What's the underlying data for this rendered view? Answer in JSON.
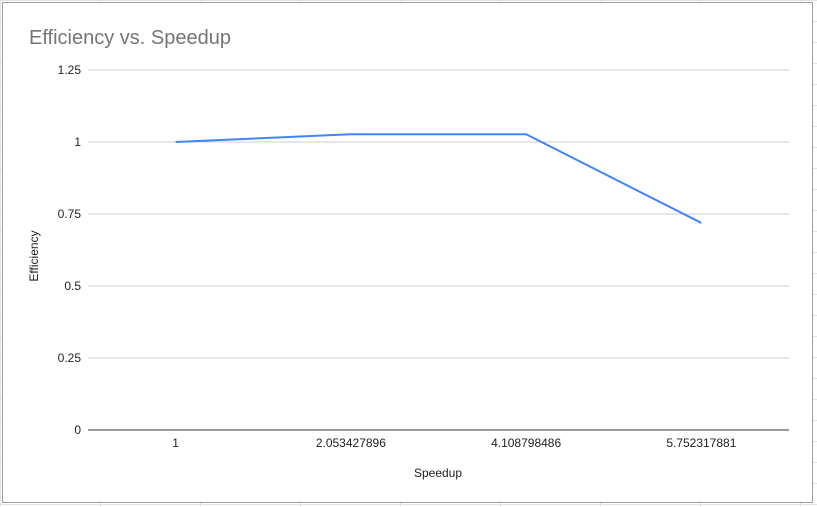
{
  "chart_data": {
    "type": "line",
    "title": "Efficiency vs. Speedup",
    "xlabel": "Speedup",
    "ylabel": "Efficiency",
    "categories": [
      "1",
      "2.053427896",
      "4.108798486",
      "5.752317881"
    ],
    "series": [
      {
        "values": [
          1.0,
          1.027,
          1.027,
          0.719
        ],
        "color": "#4285f4"
      }
    ],
    "ylim": [
      0,
      1.25
    ],
    "yticks": [
      "0",
      "0.25",
      "0.5",
      "0.75",
      "1",
      "1.25"
    ],
    "ytick_values": [
      0,
      0.25,
      0.5,
      0.75,
      1,
      1.25
    ],
    "grid": true,
    "legend": "none",
    "colors": {
      "gridline": "#cccccc",
      "baseline": "#333333",
      "title": "#757575",
      "line": "#4285f4"
    }
  }
}
